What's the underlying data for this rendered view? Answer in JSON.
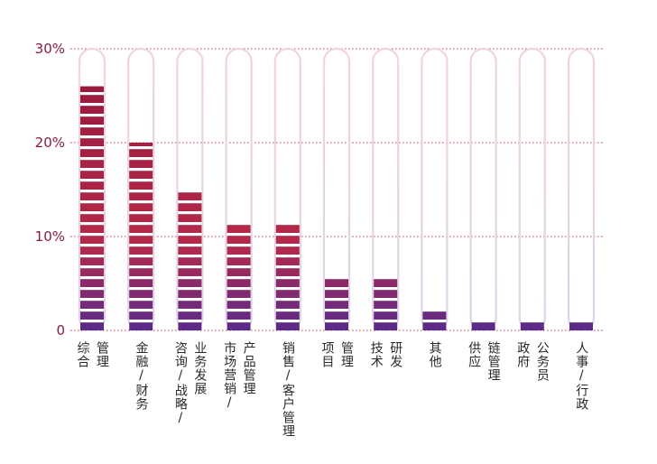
{
  "chart_data": {
    "type": "bar",
    "title": "",
    "xlabel": "",
    "ylabel": "",
    "ylim": [
      0,
      30
    ],
    "yticks": [
      {
        "value": 0,
        "label": "0"
      },
      {
        "value": 10,
        "label": "10%"
      },
      {
        "value": 20,
        "label": "20%"
      },
      {
        "value": 30,
        "label": "30%"
      }
    ],
    "grid": true,
    "categories": [
      [
        "综合",
        "管理"
      ],
      [
        "金融/财务"
      ],
      [
        "咨询/战略/",
        "业务发展"
      ],
      [
        "市场营销/",
        "产品管理"
      ],
      [
        "销售/客户管理"
      ],
      [
        "项目",
        "管理"
      ],
      [
        "技术",
        "研发"
      ],
      [
        "其他"
      ],
      [
        "供应",
        "链管理"
      ],
      [
        "政府",
        "公务员"
      ],
      [
        "人事/行政"
      ]
    ],
    "values": [
      26,
      20,
      15,
      11.5,
      11.5,
      5.5,
      5.5,
      2,
      1,
      1,
      1
    ]
  },
  "colors": {
    "top": "#9a1a3e",
    "middle": "#b52a4a",
    "bottom": "#5a2a8a",
    "gridline": "#c0385a",
    "tick": "#8a1a3c",
    "capsule_top": "#f2d4dc",
    "capsule_bottom": "#ddd3ea"
  }
}
